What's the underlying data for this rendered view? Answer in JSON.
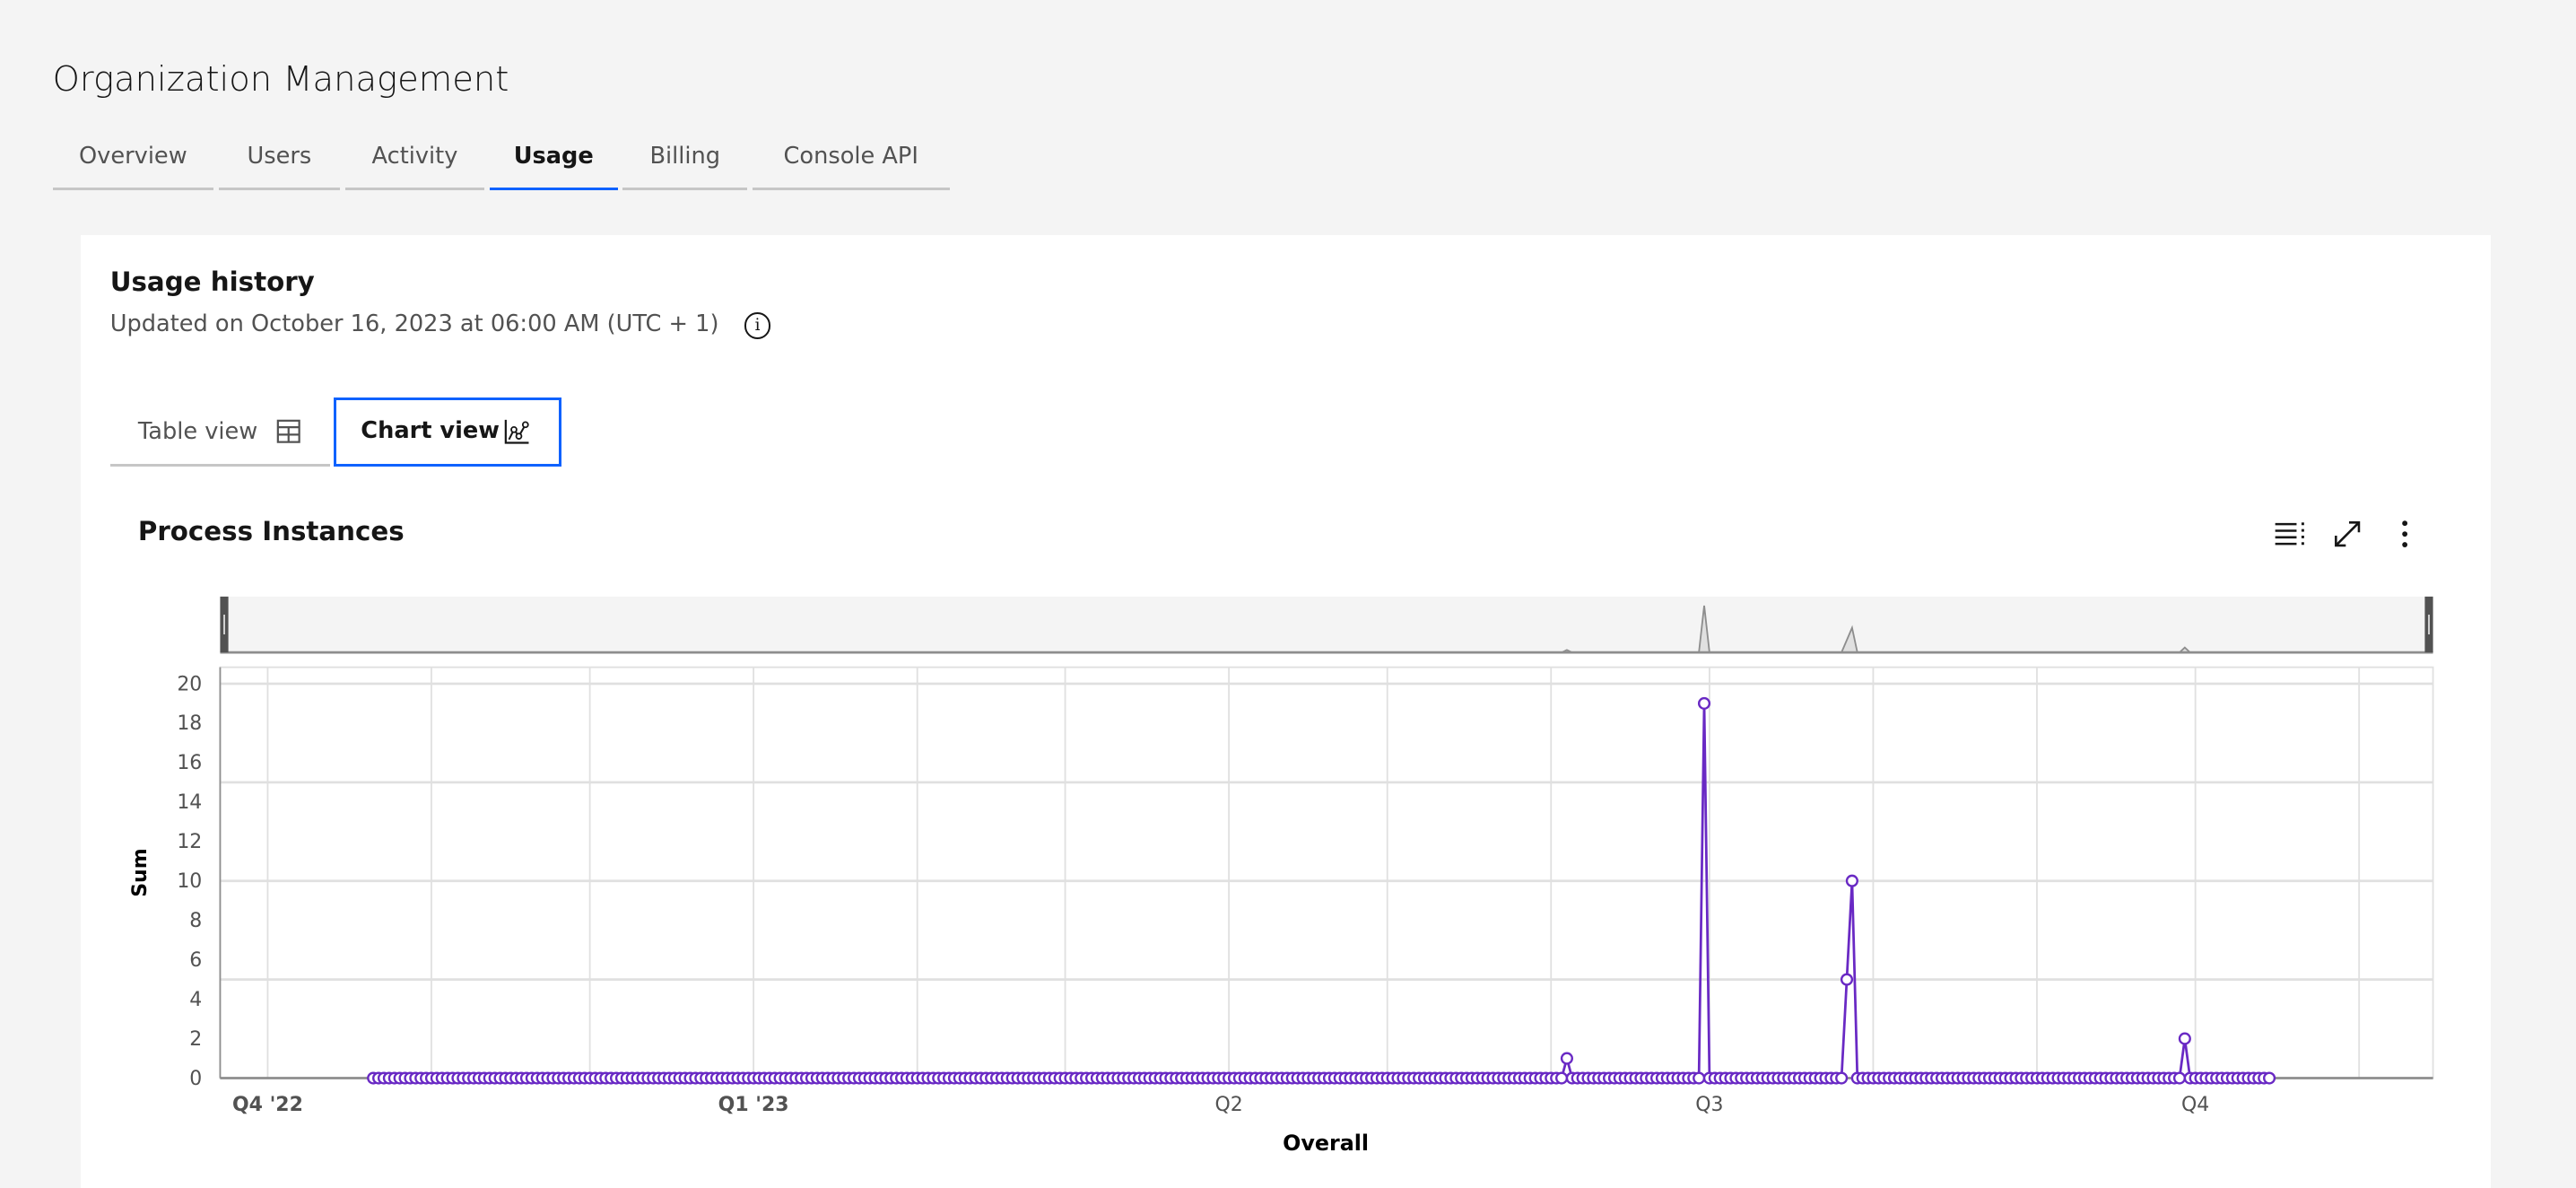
{
  "page_title": "Organization Management",
  "tabs": [
    {
      "label": "Overview",
      "active": false
    },
    {
      "label": "Users",
      "active": false
    },
    {
      "label": "Activity",
      "active": false
    },
    {
      "label": "Usage",
      "active": true
    },
    {
      "label": "Billing",
      "active": false
    },
    {
      "label": "Console API",
      "active": false
    }
  ],
  "section": {
    "title": "Usage history",
    "updated": "Updated on October 16, 2023 at 06:00 AM (UTC + 1)",
    "info_icon": "information-icon"
  },
  "view_switcher": {
    "table_label": "Table view",
    "table_icon": "table-icon",
    "chart_label": "Chart view",
    "chart_icon": "chart-line-icon",
    "selected": "Chart view"
  },
  "chart_toolbar": {
    "icons": [
      "table-list-icon",
      "maximize-icon",
      "overflow-menu-icon"
    ]
  },
  "colors": {
    "accent": "#0f62fe",
    "series": "#6929c4"
  },
  "chart_data": {
    "type": "line",
    "title": "Process Instances",
    "xlabel": "Overall",
    "ylabel": "Sum",
    "ylim": [
      0,
      20
    ],
    "yticks": [
      0,
      2,
      4,
      6,
      8,
      10,
      12,
      14,
      16,
      18,
      20
    ],
    "xlim": [
      "2022-09-22",
      "2023-11-15"
    ],
    "xticks": [
      {
        "date": "2022-10-01",
        "label": "Q4 '22",
        "bold": true
      },
      {
        "date": "2023-01-01",
        "label": "Q1 '23",
        "bold": true
      },
      {
        "date": "2023-04-01",
        "label": "Q2",
        "bold": false
      },
      {
        "date": "2023-07-01",
        "label": "Q3",
        "bold": false
      },
      {
        "date": "2023-10-01",
        "label": "Q4",
        "bold": false
      }
    ],
    "grid": true,
    "zoom_bar": true,
    "series": [
      {
        "start": "2022-10-21",
        "end": "2023-10-15",
        "interval": "day",
        "baseline_value": 0,
        "points": [
          {
            "date": "2023-06-04",
            "value": 1
          },
          {
            "date": "2023-06-30",
            "value": 19
          },
          {
            "date": "2023-07-27",
            "value": 5
          },
          {
            "date": "2023-07-28",
            "value": 10
          },
          {
            "date": "2023-09-29",
            "value": 2
          }
        ]
      }
    ]
  }
}
